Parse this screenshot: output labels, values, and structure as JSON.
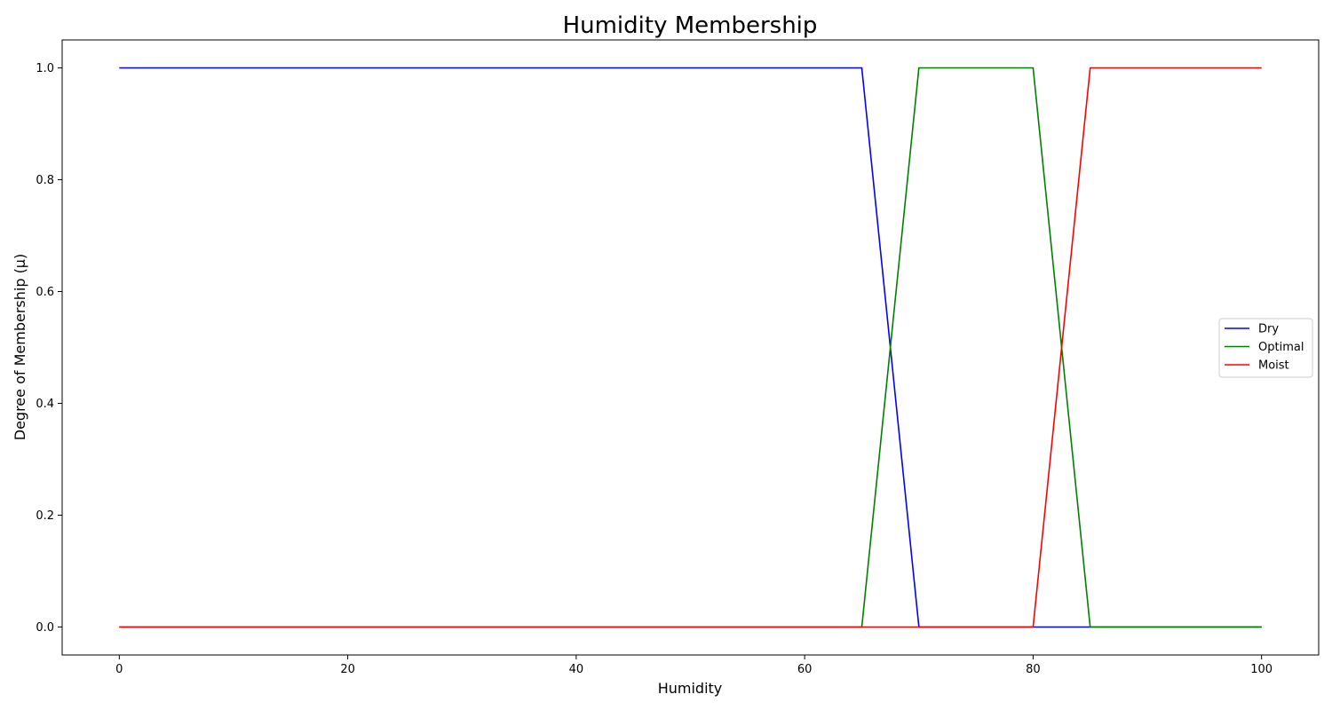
{
  "chart_data": {
    "type": "line",
    "title": "Humidity Membership",
    "xlabel": "Humidity",
    "ylabel": "Degree of Membership (μ)",
    "xlim": [
      -5,
      105
    ],
    "ylim": [
      -0.05,
      1.05
    ],
    "xticks": [
      0,
      20,
      40,
      60,
      80,
      100
    ],
    "yticks": [
      0.0,
      0.2,
      0.4,
      0.6,
      0.8,
      1.0
    ],
    "grid": false,
    "legend": "center-right",
    "series": [
      {
        "name": "Dry",
        "color": "#0000ff",
        "x": [
          0,
          65,
          70,
          100
        ],
        "y": [
          1,
          1,
          0,
          0
        ]
      },
      {
        "name": "Optimal",
        "color": "#008000",
        "x": [
          0,
          65,
          70,
          80,
          85,
          100
        ],
        "y": [
          0,
          0,
          1,
          1,
          0,
          0
        ]
      },
      {
        "name": "Moist",
        "color": "#ff0000",
        "x": [
          0,
          80,
          85,
          100
        ],
        "y": [
          0,
          0,
          1,
          1
        ]
      }
    ]
  }
}
